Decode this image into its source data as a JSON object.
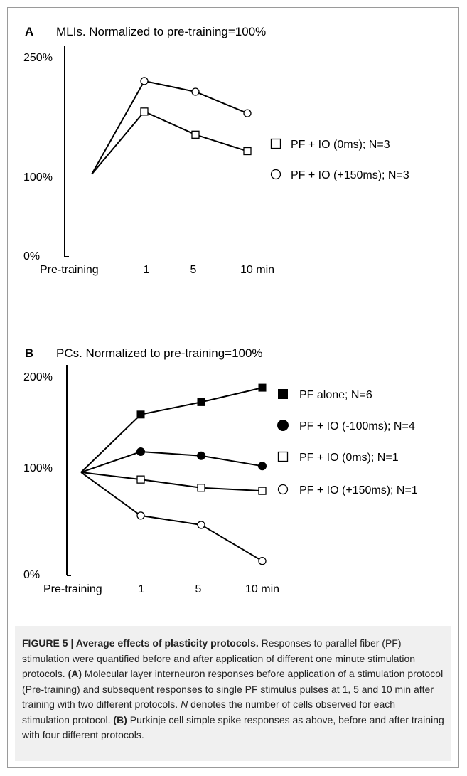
{
  "chart_data": [
    {
      "id": "A",
      "type": "line",
      "panel_letter": "A",
      "title": "MLIs. Normalized to pre-training=100%",
      "categories": [
        "Pre-training",
        "1",
        "5",
        "10 min"
      ],
      "y_ticks": [
        "250%",
        "100%",
        "0%"
      ],
      "ylim": [
        0,
        250
      ],
      "legend_position": "right",
      "series": [
        {
          "name": "PF + IO (0ms); N=3",
          "marker": "open-square",
          "values": [
            100,
            176,
            148,
            128
          ]
        },
        {
          "name": "PF + IO (+150ms); N=3",
          "marker": "open-circle",
          "values": [
            100,
            213,
            200,
            174
          ]
        }
      ],
      "legend_order": [
        0,
        1
      ]
    },
    {
      "id": "B",
      "type": "line",
      "panel_letter": "B",
      "title": "PCs. Normalized to pre-training=100%",
      "categories": [
        "Pre-training",
        "1",
        "5",
        "10 min"
      ],
      "y_ticks": [
        "200%",
        "100%",
        "0%"
      ],
      "ylim": [
        0,
        200
      ],
      "legend_position": "right",
      "series": [
        {
          "name": "PF alone; N=6",
          "marker": "filled-square",
          "values": [
            100,
            156,
            168,
            182
          ]
        },
        {
          "name": "PF + IO (-100ms); N=4",
          "marker": "filled-circle",
          "values": [
            100,
            120,
            116,
            106
          ]
        },
        {
          "name": "PF + IO (0ms); N=1",
          "marker": "open-square",
          "values": [
            100,
            93,
            85,
            82
          ]
        },
        {
          "name": "PF + IO (+150ms); N=1",
          "marker": "open-circle",
          "values": [
            100,
            58,
            49,
            14
          ]
        }
      ],
      "legend_order": [
        0,
        1,
        2,
        3
      ]
    }
  ],
  "caption": {
    "label": "FIGURE 5 | Average effects of plasticity protocols.",
    "intro": " Responses to parallel fiber (PF) stimulation were quantified before and after application of different one minute stimulation protocols. ",
    "a_ref": "(A)",
    "a_text_1": " Molecular layer interneuron responses before application of a stimulation protocol (Pre-training) and subsequent responses to single PF stimulus pulses at 1, 5 and 10 min after training with two different protocols. ",
    "n_italic": "N",
    "a_text_2": " denotes the number of cells observed for each stimulation protocol. ",
    "b_ref": "(B)",
    "b_text": " Purkinje cell simple spike responses as above, before and after training with four different protocols."
  }
}
